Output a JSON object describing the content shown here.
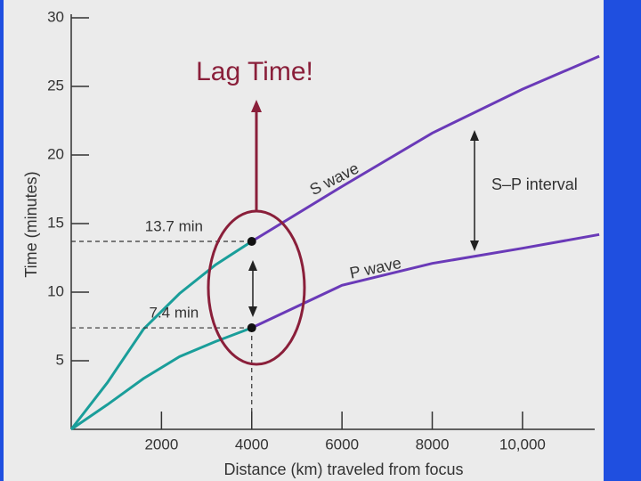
{
  "chart_data": {
    "type": "line",
    "title": "Lag Time!",
    "x_label": "Distance (km) traveled from focus",
    "y_label": "Time (minutes)",
    "xlim": [
      0,
      11600
    ],
    "ylim": [
      0,
      30
    ],
    "xticks": [
      2000,
      4000,
      6000,
      8000,
      {
        "value": 10000,
        "label": "10,000"
      }
    ],
    "yticks": [
      5,
      10,
      15,
      20,
      25,
      30
    ],
    "split_x": 4000,
    "x": [
      0,
      800,
      1600,
      2400,
      3200,
      4000,
      6000,
      8000,
      10000,
      11700
    ],
    "series": [
      {
        "name": "S wave",
        "color": "#1a9e9a",
        "far_color": "#6a3ab8",
        "values": [
          0,
          3.4,
          7.3,
          9.9,
          12,
          13.7,
          17.7,
          21.6,
          24.8,
          27.2
        ]
      },
      {
        "name": "P wave",
        "color": "#1a9e9a",
        "far_color": "#6a3ab8",
        "values": [
          0,
          1.8,
          3.7,
          5.3,
          6.4,
          7.4,
          10.5,
          12.1,
          13.2,
          14.2
        ]
      }
    ],
    "markers": {
      "x": 4000,
      "values": [
        13.7,
        7.4
      ],
      "value_labels": [
        "13.7 min",
        "7.4 min"
      ]
    },
    "interval_label": "S–P interval"
  }
}
